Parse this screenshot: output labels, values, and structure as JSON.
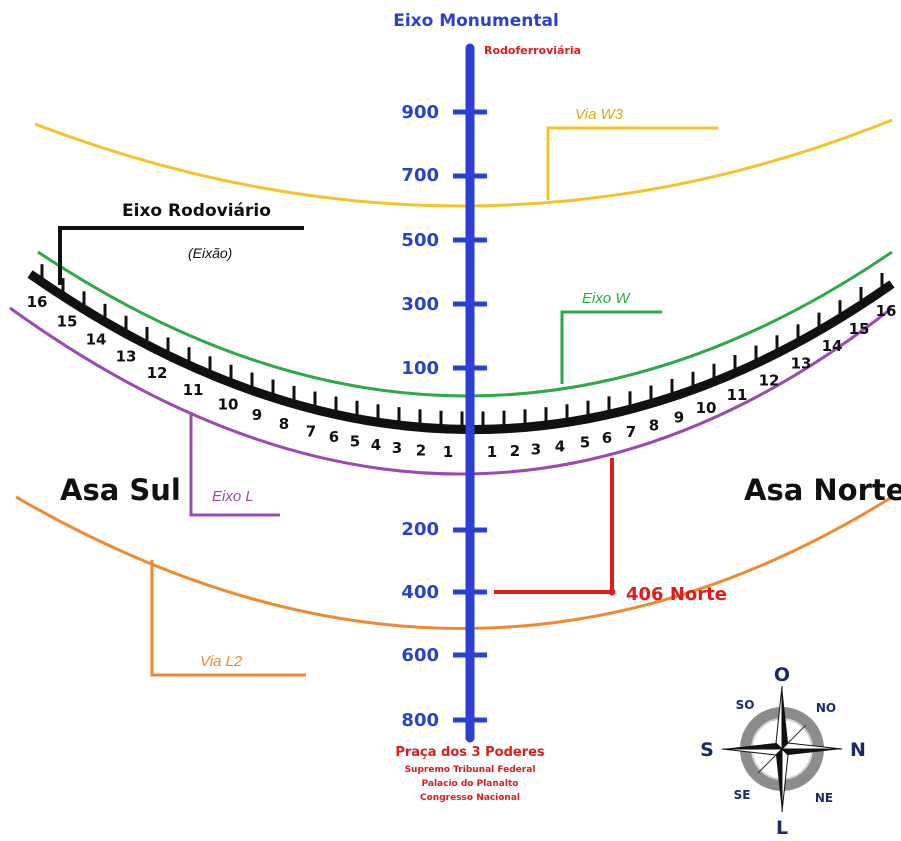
{
  "axis": {
    "title": "Eixo Monumental",
    "top_label": "Rodoferroviária",
    "bottom_title": "Praça dos 3 Poderes",
    "bottom_lines": [
      "Supremo Tribunal Federal",
      "Palacio do Planalto",
      "Congresso Nacional"
    ],
    "north_numbers": [
      "900",
      "700",
      "500",
      "300",
      "100"
    ],
    "south_numbers": [
      "200",
      "400",
      "600",
      "800"
    ]
  },
  "roads": {
    "w3": "Via W3",
    "eixo_rodoviario": "Eixo Rodoviário",
    "eixao": "(Eixão)",
    "eixo_w": "Eixo W",
    "eixo_l": "Eixo L",
    "l2": "Via L2"
  },
  "wings": {
    "left": "Asa Sul",
    "right": "Asa Norte"
  },
  "block_numbers_left": [
    "16",
    "15",
    "14",
    "13",
    "12",
    "11",
    "10",
    "9",
    "8",
    "7",
    "6",
    "5",
    "4",
    "3",
    "2",
    "1"
  ],
  "block_numbers_right": [
    "1",
    "2",
    "3",
    "4",
    "5",
    "6",
    "7",
    "8",
    "9",
    "10",
    "11",
    "12",
    "13",
    "14",
    "15",
    "16"
  ],
  "highlight": {
    "label": "406 Norte"
  },
  "compass": {
    "north": "O",
    "east": "N",
    "south": "L",
    "west": "S",
    "ne": "NO",
    "se": "NE",
    "sw": "SE",
    "nw": "SO"
  },
  "colors": {
    "monumental": "#2b3fd0",
    "w3": "#f2c42a",
    "eixao": "#111111",
    "eixo_w": "#2ea84a",
    "eixo_l": "#9b4bb0",
    "l2": "#ee8a2e",
    "highlight": "#e01b1b",
    "compass": "#1c2a6b"
  }
}
